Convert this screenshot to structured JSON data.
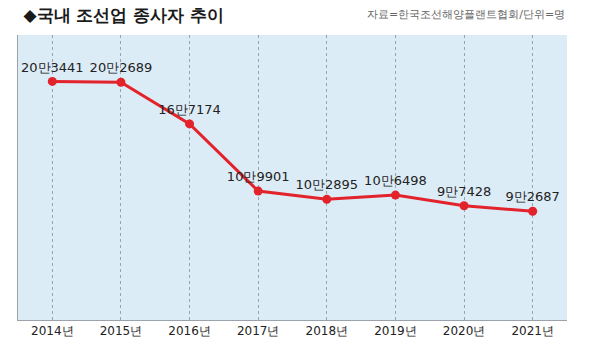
{
  "chart_data": {
    "type": "line",
    "title": "◆국내 조선업 종사자 추이",
    "annotations": [
      "자료=한국조선해양플랜트협회/단위=명"
    ],
    "categories": [
      "2014년",
      "2015년",
      "2016년",
      "2017년",
      "2018년",
      "2019년",
      "2020년",
      "2021년"
    ],
    "values": [
      203441,
      202689,
      167174,
      109901,
      102895,
      106498,
      97428,
      92687
    ],
    "value_labels": [
      "20만3441",
      "20만2689",
      "16만7174",
      "10만9901",
      "10만2895",
      "10만6498",
      "9만7428",
      "9만2687"
    ],
    "color": "#e3232b",
    "marker": "circle",
    "line_style": "solid",
    "data_labels": true,
    "tick_labels": "x",
    "grid": true,
    "ylim": [
      0,
      243000
    ]
  }
}
